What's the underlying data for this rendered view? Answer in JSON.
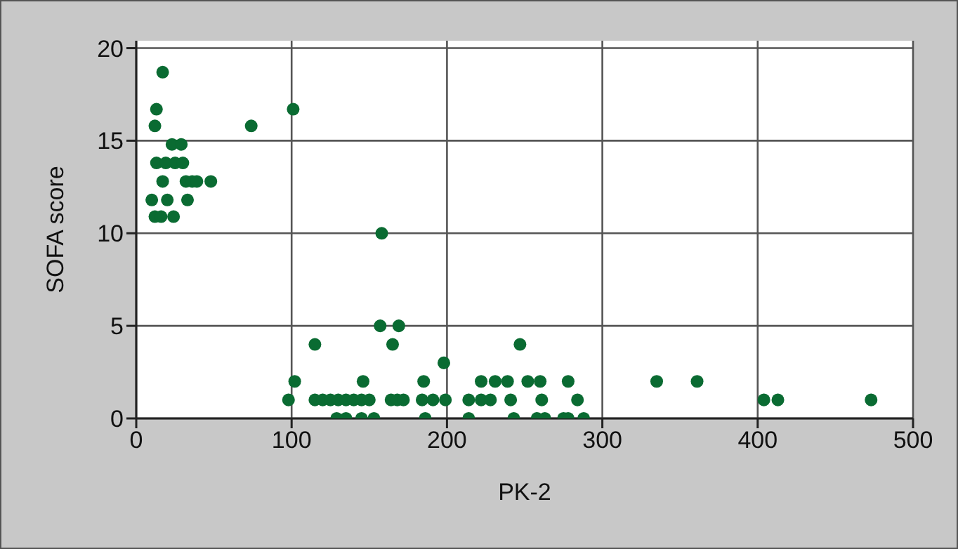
{
  "chart_data": {
    "type": "scatter",
    "xlabel": "PK-2",
    "ylabel": "SOFA score",
    "xlim": [
      0,
      500
    ],
    "xticks": [
      0,
      100,
      200,
      300,
      400,
      500
    ],
    "ylim": [
      0,
      20.4
    ],
    "yticks": [
      0,
      5,
      10,
      15,
      20
    ],
    "grid": true,
    "marker": "circle",
    "legend": false,
    "series": [
      {
        "color": "#0a6b32",
        "x": [
          17,
          13,
          101,
          12,
          74,
          23,
          29,
          13,
          19,
          25,
          30,
          17,
          32,
          36,
          39,
          48,
          10,
          20,
          33,
          12,
          16,
          24,
          158,
          157,
          169,
          165,
          115,
          102,
          98,
          115,
          120,
          125,
          130,
          135,
          140,
          145,
          150,
          164,
          168,
          172,
          146,
          129,
          135,
          145,
          153,
          198,
          247,
          185,
          222,
          231,
          239,
          252,
          260,
          278,
          335,
          361,
          184,
          191,
          199,
          214,
          222,
          228,
          241,
          261,
          284,
          186,
          214,
          243,
          258,
          263,
          275,
          278,
          288,
          404,
          413,
          473
        ],
        "values": [
          18.7,
          16.7,
          16.7,
          15.8,
          15.8,
          14.8,
          14.8,
          13.8,
          13.8,
          13.8,
          13.8,
          12.8,
          12.8,
          12.8,
          12.8,
          12.8,
          11.8,
          11.8,
          11.8,
          10.9,
          10.9,
          10.9,
          10,
          5,
          5,
          4,
          4,
          2,
          1,
          1,
          1,
          1,
          1,
          1,
          1,
          1,
          1,
          1,
          1,
          1,
          2,
          0,
          0,
          0,
          0,
          3,
          4,
          2,
          2,
          2,
          2,
          2,
          2,
          2,
          2,
          2,
          1,
          1,
          1,
          1,
          1,
          1,
          1,
          1,
          1,
          0,
          0,
          0,
          0,
          0,
          0,
          0,
          0,
          1,
          1,
          1
        ]
      }
    ]
  }
}
